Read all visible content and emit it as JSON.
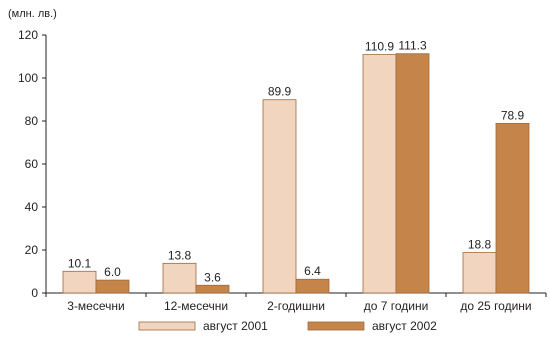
{
  "chart_data": {
    "type": "bar",
    "unit_label": "(млн. лв.)",
    "categories": [
      "3-месечни",
      "12-месечни",
      "2-годишни",
      "до 7 години",
      "до 25 години"
    ],
    "series": [
      {
        "name": "август 2001",
        "values": [
          10.1,
          13.8,
          89.9,
          110.9,
          18.8
        ],
        "labels": [
          "10.1",
          "13.8",
          "89.9",
          "110.9",
          "18.8"
        ],
        "color": "#f2d5bf"
      },
      {
        "name": "август 2002",
        "values": [
          6.0,
          3.6,
          6.4,
          111.3,
          78.9
        ],
        "labels": [
          "6.0",
          "3.6",
          "6.4",
          "111.3",
          "78.9"
        ],
        "color": "#c4844a"
      }
    ],
    "ylim": [
      0,
      120
    ],
    "yticks": [
      0,
      20,
      40,
      60,
      80,
      100,
      120
    ],
    "legend_position": "bottom",
    "grid": false
  }
}
